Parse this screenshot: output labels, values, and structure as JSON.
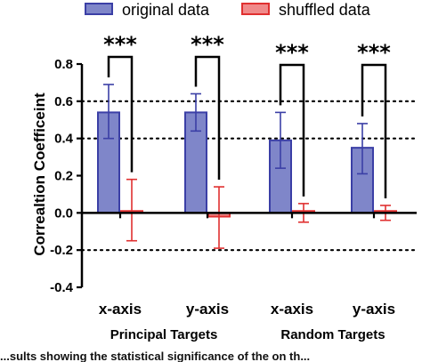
{
  "chart_data": {
    "type": "bar",
    "title": "",
    "xlabel": "",
    "ylabel": "Correaltion Coefficeint",
    "ylim": [
      -0.4,
      0.8
    ],
    "yticks": [
      "0.8",
      "0.6",
      "0.4",
      "0.2",
      "0.0",
      "-0.2",
      "-0.4"
    ],
    "ytick_values": [
      0.8,
      0.6,
      0.4,
      0.2,
      0.0,
      -0.2,
      -0.4
    ],
    "gridlines_dotted_at": [
      0.6,
      0.4,
      -0.2
    ],
    "legend_position": "top",
    "categories": [
      "x-axis",
      "y-axis",
      "x-axis",
      "y-axis"
    ],
    "groups": [
      {
        "label": "Principal Targets",
        "category_indices": [
          0,
          1
        ]
      },
      {
        "label": "Random Targets",
        "category_indices": [
          2,
          3
        ]
      }
    ],
    "series": [
      {
        "name": "original data",
        "color": "#7f86c9",
        "edge": "#3b3fa6",
        "values": [
          0.54,
          0.54,
          0.39,
          0.35
        ],
        "err_low": [
          0.4,
          0.44,
          0.24,
          0.21
        ],
        "err_high": [
          0.69,
          0.64,
          0.54,
          0.48
        ]
      },
      {
        "name": "shuffled data",
        "color": "#f08a8a",
        "edge": "#e03030",
        "values": [
          0.01,
          -0.02,
          0.01,
          0.01
        ],
        "err_low": [
          -0.15,
          -0.19,
          -0.05,
          -0.04
        ],
        "err_high": [
          0.18,
          0.14,
          0.05,
          0.04
        ]
      }
    ],
    "significance": [
      {
        "label": "***",
        "category_index": 0
      },
      {
        "label": "***",
        "category_index": 1
      },
      {
        "label": "***",
        "category_index": 2
      },
      {
        "label": "***",
        "category_index": 3
      }
    ],
    "caption_fragment": "...sults showing the statistical significance of the on th..."
  }
}
